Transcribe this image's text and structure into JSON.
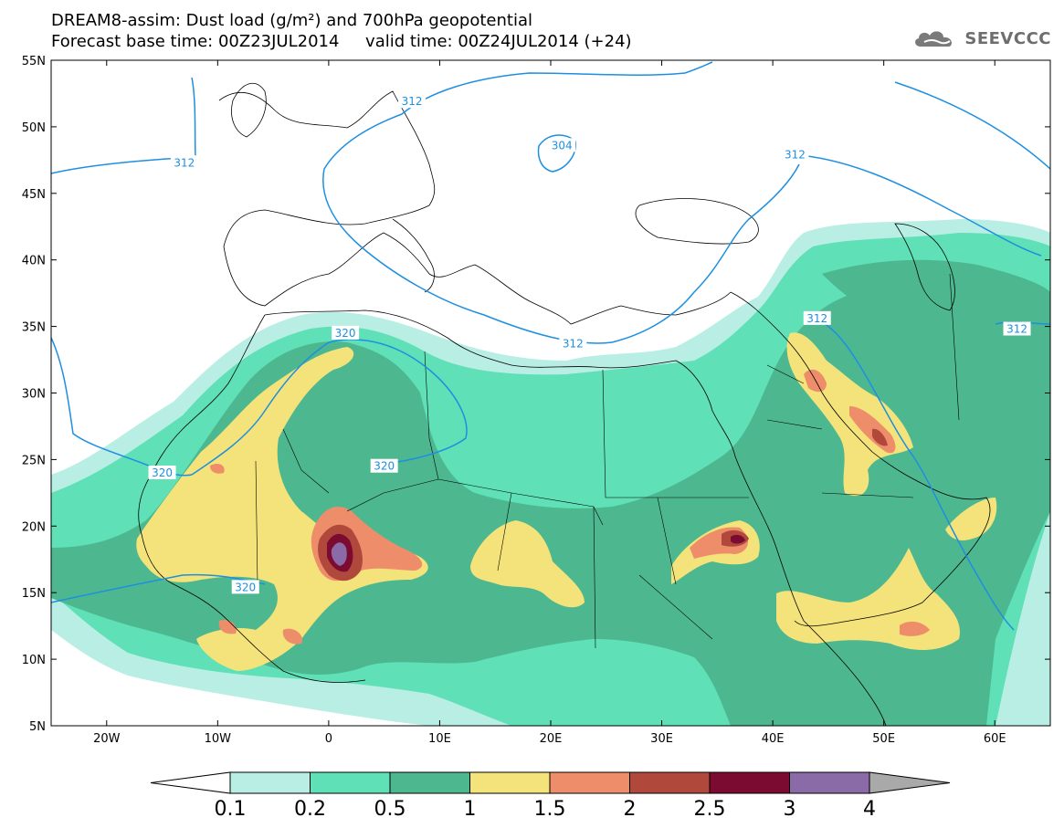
{
  "header": {
    "title_line1": "DREAM8-assim: Dust load (g/m²) and 700hPa geopotential",
    "title_line2": "Forecast base time: 00Z23JUL2014     valid time: 00Z24JUL2014 (+24)",
    "logo_text": "SEEVCCC"
  },
  "map": {
    "lat_range": [
      5,
      55
    ],
    "lon_range": [
      -25,
      65
    ],
    "lat_ticks": [
      {
        "value": 55,
        "label": "55N"
      },
      {
        "value": 50,
        "label": "50N"
      },
      {
        "value": 45,
        "label": "45N"
      },
      {
        "value": 40,
        "label": "40N"
      },
      {
        "value": 35,
        "label": "35N"
      },
      {
        "value": 30,
        "label": "30N"
      },
      {
        "value": 25,
        "label": "25N"
      },
      {
        "value": 20,
        "label": "20N"
      },
      {
        "value": 15,
        "label": "15N"
      },
      {
        "value": 10,
        "label": "10N"
      },
      {
        "value": 5,
        "label": "5N"
      }
    ],
    "lon_ticks": [
      {
        "value": -20,
        "label": "20W"
      },
      {
        "value": -10,
        "label": "10W"
      },
      {
        "value": 0,
        "label": "0"
      },
      {
        "value": 10,
        "label": "10E"
      },
      {
        "value": 20,
        "label": "20E"
      },
      {
        "value": 30,
        "label": "30E"
      },
      {
        "value": 40,
        "label": "40E"
      },
      {
        "value": 50,
        "label": "50E"
      },
      {
        "value": 60,
        "label": "60E"
      }
    ],
    "isoline_color": "#1e8fe0",
    "isoline_labels": [
      {
        "text": "312",
        "lon": -13,
        "lat": 47.3
      },
      {
        "text": "312",
        "lon": 7.5,
        "lat": 51.9
      },
      {
        "text": "304",
        "lon": 21,
        "lat": 48.6
      },
      {
        "text": "312",
        "lon": 42,
        "lat": 47.9
      },
      {
        "text": "312",
        "lon": 22,
        "lat": 33.7
      },
      {
        "text": "312",
        "lon": 44,
        "lat": 35.6
      },
      {
        "text": "312",
        "lon": 62,
        "lat": 34.8
      },
      {
        "text": "320",
        "lon": 1.5,
        "lat": 34.5
      },
      {
        "text": "320",
        "lon": 5,
        "lat": 24.5
      },
      {
        "text": "320",
        "lon": -15,
        "lat": 24.0
      },
      {
        "text": "320",
        "lon": -7.5,
        "lat": 15.4
      }
    ]
  },
  "colorbar": {
    "levels": [
      "0.1",
      "0.2",
      "0.5",
      "1",
      "1.5",
      "2",
      "2.5",
      "3",
      "4"
    ],
    "colors": [
      "#ffffff",
      "#b8eee4",
      "#5fe0b6",
      "#4db890",
      "#f4e37a",
      "#ee8d6a",
      "#b0493b",
      "#7c0b31",
      "#8b6aa8",
      "#a9a9a9"
    ]
  }
}
